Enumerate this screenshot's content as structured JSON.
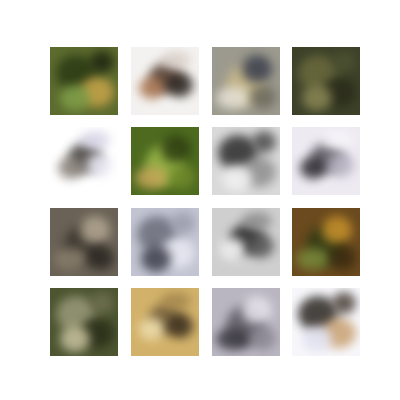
{
  "grid": {
    "rows": 4,
    "cols": 4,
    "tiles": [
      {
        "name": "sample-tile-1",
        "bg": "#5c6b2e",
        "blobs": [
          "#2b3a14",
          "#c9a44a",
          "#7fa04a",
          "#1e2410"
        ]
      },
      {
        "name": "sample-tile-2",
        "bg": "#f4f2f0",
        "blobs": [
          "#4a3326",
          "#a8744f",
          "#2a2520",
          "#d9cfc8"
        ]
      },
      {
        "name": "sample-tile-3",
        "bg": "#9c9a8e",
        "blobs": [
          "#c9b98a",
          "#3b3f4e",
          "#e6e2d6",
          "#6d6a5c"
        ]
      },
      {
        "name": "sample-tile-4",
        "bg": "#3c4128",
        "blobs": [
          "#6b6a3e",
          "#2a2c1a",
          "#8a8755",
          "#4d5232"
        ]
      },
      {
        "name": "sample-tile-5",
        "bg": "#ffffff",
        "blobs": [
          "#3b3733",
          "#8a827a",
          "#e8e6f2",
          "#d5d3e6"
        ]
      },
      {
        "name": "sample-tile-6",
        "bg": "#4d6a1f",
        "blobs": [
          "#9bb94a",
          "#2f3f12",
          "#c7a75a",
          "#6f8a2a"
        ]
      },
      {
        "name": "sample-tile-7",
        "bg": "#d9d9d9",
        "blobs": [
          "#2a2a2a",
          "#8e8e8e",
          "#f2f2f2",
          "#4a4a4a"
        ]
      },
      {
        "name": "sample-tile-8",
        "bg": "#eeeaf2",
        "blobs": [
          "#5a5560",
          "#2d2a30",
          "#b8b4c2",
          "#f8f6fa"
        ]
      },
      {
        "name": "sample-tile-9",
        "bg": "#6a6256",
        "blobs": [
          "#3a352e",
          "#b5a893",
          "#8a7f6c",
          "#2b2722"
        ]
      },
      {
        "name": "sample-tile-10",
        "bg": "#c2c4d2",
        "blobs": [
          "#6a6c7a",
          "#e8e9f2",
          "#3d3f4c",
          "#9a9cab"
        ]
      },
      {
        "name": "sample-tile-11",
        "bg": "#cfcfcf",
        "blobs": [
          "#1f1f1f",
          "#f4f4f4",
          "#5a5a5a",
          "#8b8b8b"
        ]
      },
      {
        "name": "sample-tile-12",
        "bg": "#6a4a1e",
        "blobs": [
          "#2f3a15",
          "#c8922c",
          "#7a8a3a",
          "#3a2a10"
        ]
      },
      {
        "name": "sample-tile-13",
        "bg": "#4c5430",
        "blobs": [
          "#9a9a7a",
          "#2a2e18",
          "#c9c3a0",
          "#6f6f50"
        ]
      },
      {
        "name": "sample-tile-14",
        "bg": "#d2b26a",
        "blobs": [
          "#6e5a3a",
          "#f0e0b0",
          "#3b2e1e",
          "#a4874e"
        ]
      },
      {
        "name": "sample-tile-15",
        "bg": "#b9b6c2",
        "blobs": [
          "#5e5a64",
          "#e6e4ec",
          "#3a3840",
          "#8a8692"
        ]
      },
      {
        "name": "sample-tile-16",
        "bg": "#f7f7fb",
        "blobs": [
          "#2a2520",
          "#c8a070",
          "#e0e0ee",
          "#4a4038"
        ]
      }
    ]
  }
}
